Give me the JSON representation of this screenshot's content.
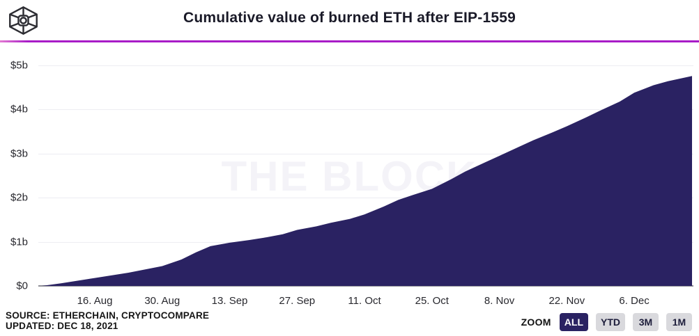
{
  "header": {
    "title": "Cumulative value of burned ETH after EIP-1559",
    "logo_name": "the-block-logo"
  },
  "watermark": "THE BLOCK",
  "colors": {
    "area_fill": "#2a2262",
    "divider": "#a81bc7",
    "gridline": "#ededf2",
    "baseline": "#8f8f96",
    "active_button_bg": "#2a2262",
    "inactive_button_bg": "#d9d9dd",
    "watermark": "#f4f3f8"
  },
  "chart_data": {
    "type": "area",
    "title": "Cumulative value of burned ETH after EIP-1559",
    "xlabel": "",
    "ylabel": "",
    "ylim": [
      0,
      5
    ],
    "y_unit": "billion USD",
    "grid": "horizontal",
    "y_ticks": [
      {
        "v": 5,
        "label": "$5b"
      },
      {
        "v": 4,
        "label": "$4b"
      },
      {
        "v": 3,
        "label": "$3b"
      },
      {
        "v": 2,
        "label": "$2b"
      },
      {
        "v": 1,
        "label": "$1b"
      },
      {
        "v": 0,
        "label": "$0"
      }
    ],
    "x_ticks": [
      {
        "day": 11,
        "label": "16. Aug"
      },
      {
        "day": 25,
        "label": "30. Aug"
      },
      {
        "day": 39,
        "label": "13. Sep"
      },
      {
        "day": 53,
        "label": "27. Sep"
      },
      {
        "day": 67,
        "label": "11. Oct"
      },
      {
        "day": 81,
        "label": "25. Oct"
      },
      {
        "day": 95,
        "label": "8. Nov"
      },
      {
        "day": 109,
        "label": "22. Nov"
      },
      {
        "day": 123,
        "label": "6. Dec"
      }
    ],
    "x_range_days": [
      0,
      135
    ],
    "points": [
      {
        "date": "Aug 5",
        "day": 0,
        "value": 0.0
      },
      {
        "date": "Aug 9",
        "day": 4,
        "value": 0.06
      },
      {
        "date": "Aug 16",
        "day": 11,
        "value": 0.18
      },
      {
        "date": "Aug 23",
        "day": 18,
        "value": 0.3
      },
      {
        "date": "Aug 30",
        "day": 25,
        "value": 0.45
      },
      {
        "date": "Sep 3",
        "day": 29,
        "value": 0.6
      },
      {
        "date": "Sep 6",
        "day": 32,
        "value": 0.76
      },
      {
        "date": "Sep 9",
        "day": 35,
        "value": 0.9
      },
      {
        "date": "Sep 13",
        "day": 39,
        "value": 0.98
      },
      {
        "date": "Sep 17",
        "day": 43,
        "value": 1.04
      },
      {
        "date": "Sep 20",
        "day": 46,
        "value": 1.09
      },
      {
        "date": "Sep 24",
        "day": 50,
        "value": 1.17
      },
      {
        "date": "Sep 27",
        "day": 53,
        "value": 1.27
      },
      {
        "date": "Oct 1",
        "day": 57,
        "value": 1.35
      },
      {
        "date": "Oct 4",
        "day": 60,
        "value": 1.43
      },
      {
        "date": "Oct 8",
        "day": 64,
        "value": 1.52
      },
      {
        "date": "Oct 11",
        "day": 67,
        "value": 1.62
      },
      {
        "date": "Oct 15",
        "day": 71,
        "value": 1.8
      },
      {
        "date": "Oct 18",
        "day": 74,
        "value": 1.95
      },
      {
        "date": "Oct 21",
        "day": 77,
        "value": 2.06
      },
      {
        "date": "Oct 25",
        "day": 81,
        "value": 2.2
      },
      {
        "date": "Oct 29",
        "day": 85,
        "value": 2.42
      },
      {
        "date": "Nov 1",
        "day": 88,
        "value": 2.6
      },
      {
        "date": "Nov 5",
        "day": 92,
        "value": 2.8
      },
      {
        "date": "Nov 8",
        "day": 95,
        "value": 2.95
      },
      {
        "date": "Nov 12",
        "day": 99,
        "value": 3.15
      },
      {
        "date": "Nov 15",
        "day": 102,
        "value": 3.3
      },
      {
        "date": "Nov 19",
        "day": 106,
        "value": 3.48
      },
      {
        "date": "Nov 22",
        "day": 109,
        "value": 3.62
      },
      {
        "date": "Nov 26",
        "day": 113,
        "value": 3.82
      },
      {
        "date": "Nov 29",
        "day": 116,
        "value": 3.98
      },
      {
        "date": "Dec 3",
        "day": 120,
        "value": 4.18
      },
      {
        "date": "Dec 6",
        "day": 123,
        "value": 4.38
      },
      {
        "date": "Dec 10",
        "day": 127,
        "value": 4.55
      },
      {
        "date": "Dec 13",
        "day": 130,
        "value": 4.64
      },
      {
        "date": "Dec 18",
        "day": 135,
        "value": 4.76
      }
    ]
  },
  "footer": {
    "source_line1": "SOURCE: ETHERCHAIN, CRYPTOCOMPARE",
    "source_line2": "UPDATED: DEC 18, 2021",
    "zoom": {
      "label": "ZOOM",
      "buttons": [
        {
          "label": "ALL",
          "active": true
        },
        {
          "label": "YTD",
          "active": false
        },
        {
          "label": "3M",
          "active": false
        },
        {
          "label": "1M",
          "active": false
        }
      ]
    }
  }
}
